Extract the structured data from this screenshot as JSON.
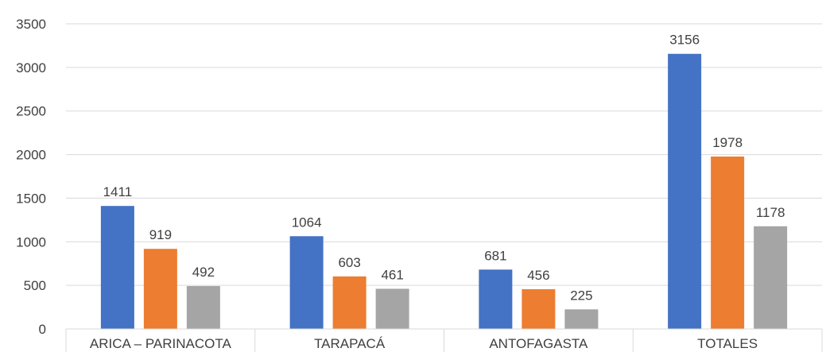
{
  "chart_data": {
    "type": "bar",
    "categories": [
      "ARICA – PARINACOTA",
      "TARAPACÁ",
      "ANTOFAGASTA",
      "TOTALES"
    ],
    "series": [
      {
        "values": [
          1411,
          1064,
          681,
          3156
        ],
        "color": "#4472C4"
      },
      {
        "values": [
          919,
          603,
          456,
          1978
        ],
        "color": "#ED7D31"
      },
      {
        "values": [
          492,
          461,
          225,
          1178
        ],
        "color": "#A5A5A5"
      }
    ],
    "yticks": [
      "0",
      "500",
      "1000",
      "1500",
      "2000",
      "2500",
      "3000",
      "3500"
    ],
    "ylim": [
      0,
      3500
    ],
    "grid": true,
    "legend": "none"
  }
}
